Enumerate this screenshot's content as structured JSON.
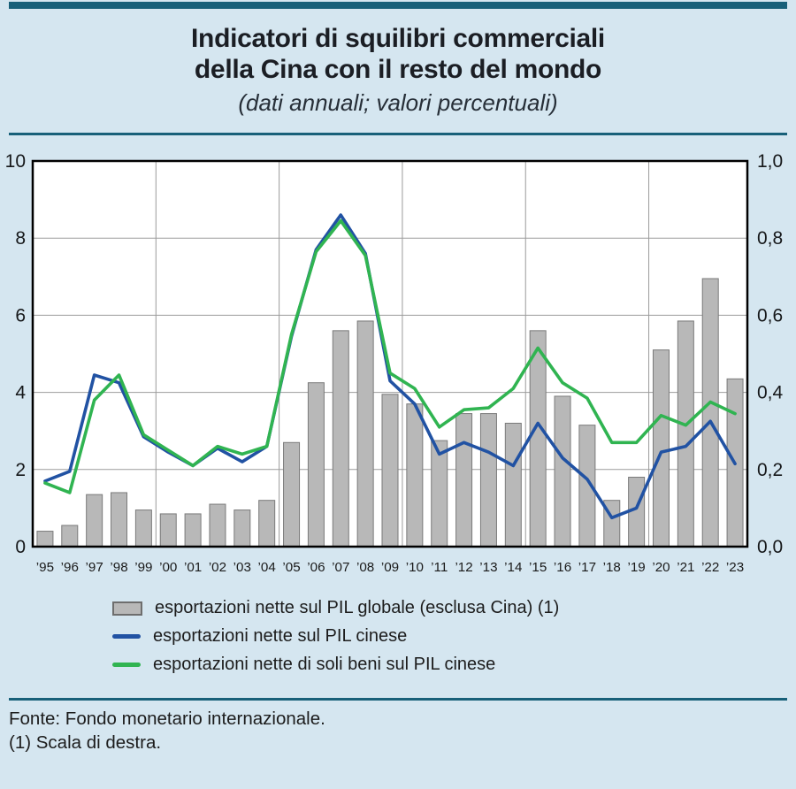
{
  "page": {
    "background_color": "#d5e6f0",
    "accent_color": "#186079"
  },
  "header": {
    "title_line1": "Indicatori di squilibri commerciali",
    "title_line2": "della Cina con il resto del mondo",
    "subtitle": "(dati annuali; valori percentuali)"
  },
  "footer": {
    "source": "Fonte: Fondo monetario internazionale.",
    "note": "(1) Scala di destra."
  },
  "chart_data": {
    "type": "bar",
    "title": "Indicatori di squilibri commerciali della Cina con il resto del mondo",
    "subtitle": "(dati annuali; valori percentuali)",
    "categories": [
      "’95",
      "’96",
      "’97",
      "’98",
      "’99",
      "’00",
      "’01",
      "’02",
      "’03",
      "’04",
      "’05",
      "’06",
      "’07",
      "’08",
      "’09",
      "’10",
      "’11",
      "’12",
      "’13",
      "’14",
      "’15",
      "’16",
      "’17",
      "’18",
      "’19",
      "’20",
      "’21",
      "’22",
      "’23"
    ],
    "series": [
      {
        "name": "esportazioni nette sul PIL globale (esclusa Cina) (1)",
        "type": "bar",
        "axis": "right",
        "color": "#b8b8b8",
        "border_color": "#7a7a7a",
        "values": [
          0.04,
          0.055,
          0.135,
          0.14,
          0.095,
          0.085,
          0.085,
          0.11,
          0.095,
          0.12,
          0.27,
          0.425,
          0.56,
          0.585,
          0.395,
          0.37,
          0.275,
          0.345,
          0.345,
          0.32,
          0.56,
          0.39,
          0.315,
          0.12,
          0.18,
          0.51,
          0.585,
          0.695,
          0.435
        ]
      },
      {
        "name": "esportazioni nette sul PIL cinese",
        "type": "line",
        "axis": "left",
        "color": "#2152a3",
        "values": [
          1.7,
          1.95,
          4.45,
          4.25,
          2.85,
          2.45,
          2.1,
          2.55,
          2.2,
          2.6,
          5.45,
          7.7,
          8.6,
          7.6,
          4.3,
          3.7,
          2.4,
          2.7,
          2.45,
          2.1,
          3.2,
          2.3,
          1.75,
          0.75,
          1.0,
          2.45,
          2.6,
          3.25,
          2.15
        ]
      },
      {
        "name": "esportazioni nette di soli beni sul PIL cinese",
        "type": "line",
        "axis": "left",
        "color": "#30b451",
        "values": [
          1.65,
          1.4,
          3.8,
          4.45,
          2.9,
          2.5,
          2.1,
          2.6,
          2.4,
          2.6,
          5.5,
          7.65,
          8.45,
          7.55,
          4.5,
          4.1,
          3.1,
          3.55,
          3.6,
          4.1,
          5.15,
          4.25,
          3.85,
          2.7,
          2.7,
          3.4,
          3.15,
          3.75,
          3.45
        ]
      }
    ],
    "left_axis": {
      "min": 0,
      "max": 10,
      "ticks": [
        0,
        2,
        4,
        6,
        8,
        10
      ]
    },
    "right_axis": {
      "min": 0,
      "max": 1.0,
      "tick_labels": [
        "0,0",
        "0,2",
        "0,4",
        "0,6",
        "0,8",
        "1,0"
      ]
    },
    "grid": {
      "horizontal": true,
      "vertical_group_boundaries_after_index": [
        4,
        9,
        14,
        19,
        24
      ],
      "color": "#9b9b9b"
    },
    "plot_background": "#ffffff",
    "legend_position": "bottom-left"
  }
}
